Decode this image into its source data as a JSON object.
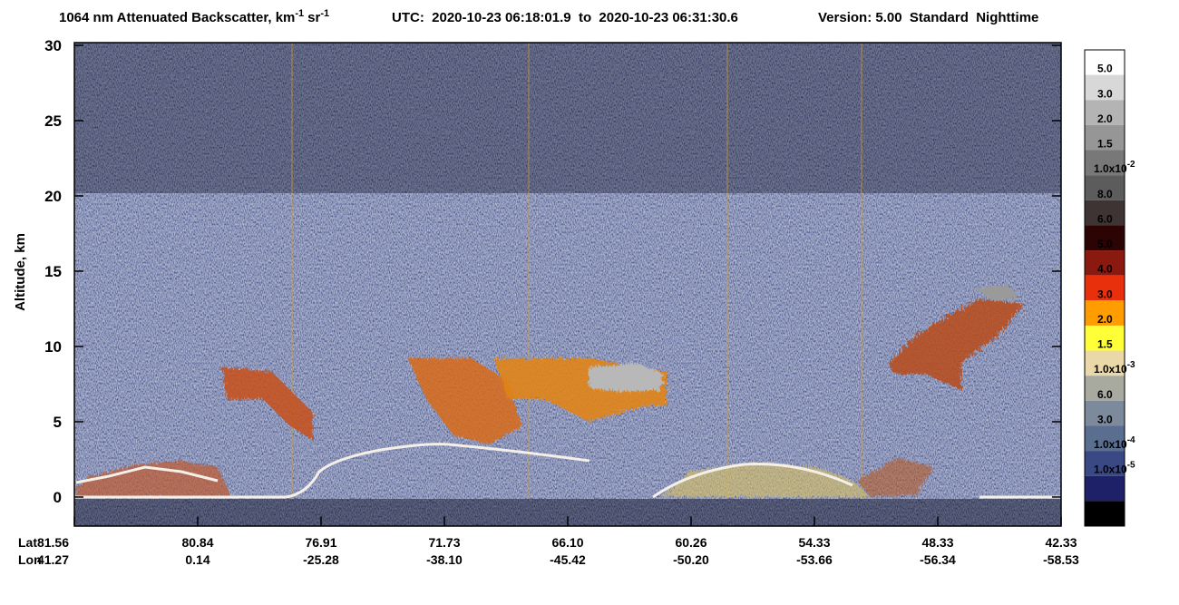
{
  "chart_data": {
    "type": "curtain",
    "title": {
      "quantity": "1064 nm Attenuated Backscatter, km",
      "exp1": "-1",
      "unit2": "sr",
      "exp2": "-1",
      "utc": "UTC:  2020-10-23 06:18:01.9  to  2020-10-23 06:31:30.6",
      "version": "Version: 5.00  Standard  Nighttime"
    },
    "y_label": "Altitude, km",
    "ylim": [
      -1.9,
      30
    ],
    "yticks": [
      0,
      5,
      10,
      15,
      20,
      25,
      30
    ],
    "x_row_labels": [
      "Lat",
      "Lon"
    ],
    "lat": [
      "81.56",
      "80.84",
      "76.91",
      "71.73",
      "66.10",
      "60.26",
      "54.33",
      "48.33",
      "42.33"
    ],
    "lon": [
      "41.27",
      "0.14",
      "-25.28",
      "-38.10",
      "-45.42",
      "-50.20",
      "-53.66",
      "-56.34",
      "-58.53"
    ],
    "colorbar": {
      "colors": [
        "#ffffff",
        "#d8d8d8",
        "#b4b4b4",
        "#969696",
        "#787878",
        "#5c5c5c",
        "#3e3433",
        "#2c0404",
        "#8a1a10",
        "#e8300c",
        "#ff9c00",
        "#ffff38",
        "#ead8a8",
        "#a8aaa0",
        "#7c8a9c",
        "#5a6e90",
        "#3a4884",
        "#1e2068",
        "#000000"
      ],
      "labels": [
        "5.0",
        "3.0",
        "2.0",
        "1.5",
        {
          "mantissa": "1.0x10",
          "exp": "-2"
        },
        "8.0",
        "6.0",
        "5.0",
        "4.0",
        "3.0",
        "2.0",
        "1.5",
        {
          "mantissa": "1.0x10",
          "exp": "-3"
        },
        "6.0",
        "3.0",
        {
          "mantissa": "1.0x10",
          "exp": "-4"
        },
        {
          "mantissa": "1.0x10",
          "exp": "-5"
        }
      ]
    }
  }
}
